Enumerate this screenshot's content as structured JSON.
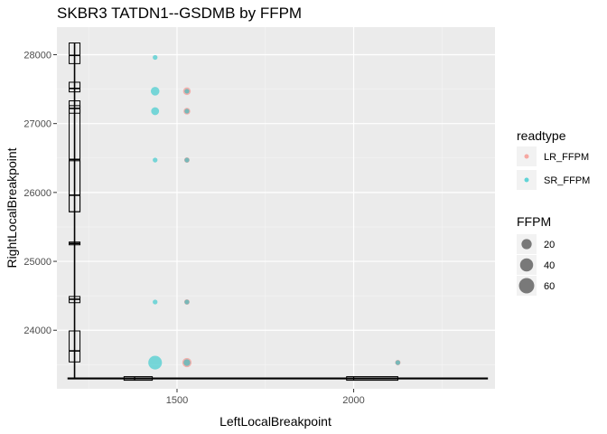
{
  "chart_data": {
    "type": "scatter",
    "title": "SKBR3 TATDN1--GSDMB by FFPM",
    "xlabel": "LeftLocalBreakpoint",
    "ylabel": "RightLocalBreakpoint",
    "xlim": [
      1160,
      2400
    ],
    "ylim": [
      23150,
      28400
    ],
    "x_ticks": [
      1500,
      2000
    ],
    "y_ticks": [
      24000,
      25000,
      26000,
      27000,
      28000
    ],
    "x_tick_labels": [
      "1500",
      "2000"
    ],
    "y_tick_labels": [
      "24000",
      "25000",
      "26000",
      "27000",
      "28000"
    ],
    "grid": true,
    "legend_position": "right",
    "color_legend": {
      "title": "readtype",
      "entries": [
        {
          "label": "LR_FFPM",
          "color": "#f8766d"
        },
        {
          "label": "SR_FFPM",
          "color": "#00bfc4"
        }
      ]
    },
    "size_legend": {
      "title": "FFPM",
      "entries": [
        {
          "label": "20",
          "value": 20
        },
        {
          "label": "40",
          "value": 40
        },
        {
          "label": "60",
          "value": 60
        }
      ]
    },
    "series": [
      {
        "name": "LR_FFPM",
        "color": "#f8766d",
        "points": [
          {
            "x": 1528,
            "y": 27470,
            "ffpm": 8
          },
          {
            "x": 1528,
            "y": 27180,
            "ffpm": 5
          },
          {
            "x": 1528,
            "y": 26470,
            "ffpm": 2
          },
          {
            "x": 1528,
            "y": 24410,
            "ffpm": 2
          },
          {
            "x": 1528,
            "y": 23530,
            "ffpm": 15
          },
          {
            "x": 2125,
            "y": 23530,
            "ffpm": 2
          }
        ]
      },
      {
        "name": "SR_FFPM",
        "color": "#00bfc4",
        "points": [
          {
            "x": 1438,
            "y": 27960,
            "ffpm": 1
          },
          {
            "x": 1438,
            "y": 27470,
            "ffpm": 12
          },
          {
            "x": 1438,
            "y": 27180,
            "ffpm": 9
          },
          {
            "x": 1438,
            "y": 26470,
            "ffpm": 1
          },
          {
            "x": 1438,
            "y": 24410,
            "ffpm": 1
          },
          {
            "x": 1438,
            "y": 23530,
            "ffpm": 45
          },
          {
            "x": 1528,
            "y": 27470,
            "ffpm": 1
          },
          {
            "x": 1528,
            "y": 27180,
            "ffpm": 1
          },
          {
            "x": 1528,
            "y": 26470,
            "ffpm": 1
          },
          {
            "x": 1528,
            "y": 24410,
            "ffpm": 1
          },
          {
            "x": 1528,
            "y": 23530,
            "ffpm": 5
          },
          {
            "x": 2125,
            "y": 23530,
            "ffpm": 1
          }
        ]
      }
    ],
    "breakpoint_boxes_y": [
      {
        "center": 27990,
        "min": 27870,
        "max": 28170
      },
      {
        "center": 27510,
        "min": 27460,
        "max": 27600
      },
      {
        "center": 27220,
        "min": 27150,
        "max": 27330
      },
      {
        "center": 26480,
        "min": 25720,
        "max": 27260
      },
      {
        "center": 25960,
        "min": 25720,
        "max": 26460
      },
      {
        "center": 25260,
        "min": 25240,
        "max": 25280
      },
      {
        "center": 24450,
        "min": 24400,
        "max": 24490
      },
      {
        "center": 23700,
        "min": 23540,
        "max": 23990
      }
    ],
    "breakpoint_boxes_x": [
      {
        "center": 1380,
        "min": 1350,
        "max": 1430
      },
      {
        "center": 2000,
        "min": 1980,
        "max": 2125
      }
    ],
    "bracket": {
      "x": 1210,
      "y_min": 23300,
      "y_max": 28170,
      "x_min": 1210,
      "x_max": 2380,
      "x_start": 1190
    }
  }
}
